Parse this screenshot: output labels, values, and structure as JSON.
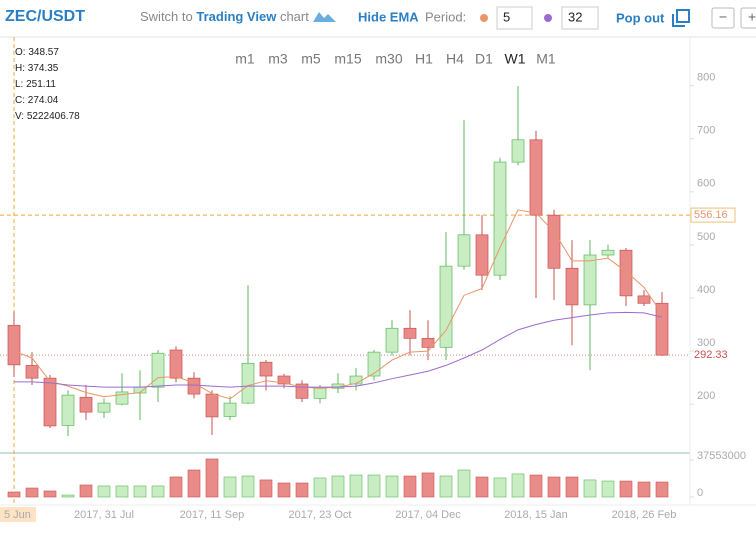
{
  "header": {
    "pair": "ZEC/USDT",
    "switch_to": "Switch to",
    "trading_view": "Trading View",
    "chart_word": "chart",
    "hide_ema": "Hide EMA",
    "period_label": "Period:",
    "period_fast": 5,
    "period_slow": 32,
    "pop_out": "Pop out",
    "zoom_out": "−",
    "zoom_in": "+"
  },
  "timeframes": [
    "m1",
    "m3",
    "m5",
    "m15",
    "m30",
    "H1",
    "H4",
    "D1",
    "W1",
    "M1"
  ],
  "active_timeframe": 8,
  "ohlc_panel": [
    {
      "label": "O:",
      "value": 348.57
    },
    {
      "label": "H:",
      "value": 374.35
    },
    {
      "label": "L:",
      "value": 251.11
    },
    {
      "label": "C:",
      "value": 274.04
    },
    {
      "label": "V:",
      "value": 5222406.78
    }
  ],
  "chart_data": {
    "type": "candlestick",
    "x": [
      "5 Jun",
      null,
      null,
      null,
      null,
      "2017, 31 Jul",
      null,
      null,
      null,
      null,
      null,
      "2017, 11 Sep",
      null,
      null,
      null,
      null,
      null,
      "2017, 23 Oct",
      null,
      null,
      null,
      null,
      null,
      "2017, 04 Dec",
      null,
      null,
      null,
      null,
      null,
      "2018, 15 Jan",
      null,
      null,
      null,
      null,
      null,
      "2018, 26 Feb",
      null
    ],
    "open": [
      348.57,
      273,
      249,
      160,
      213,
      185,
      200,
      221,
      232,
      302,
      249,
      219,
      177,
      202,
      279,
      253,
      238,
      211,
      230,
      238,
      253,
      298,
      343,
      324,
      307,
      460,
      519,
      443,
      656,
      698,
      556,
      456,
      387,
      481,
      490,
      404,
      390
    ],
    "high": [
      374.35,
      298,
      255,
      226,
      236,
      211,
      258,
      264,
      302,
      309,
      260,
      226,
      215,
      424,
      283,
      257,
      245,
      236,
      258,
      268,
      302,
      358,
      377,
      358,
      524,
      735,
      556,
      664,
      799,
      715,
      566,
      509,
      509,
      500,
      494,
      415,
      411
    ],
    "low": [
      251.11,
      236,
      155,
      140,
      170,
      174,
      198,
      170,
      204,
      241,
      211,
      142,
      170,
      200,
      226,
      230,
      204,
      202,
      221,
      226,
      245,
      292,
      292,
      283,
      283,
      453,
      415,
      434,
      650,
      400,
      396,
      311,
      264,
      475,
      385,
      385,
      291
    ],
    "close": [
      274.04,
      249,
      159,
      217,
      185,
      202,
      223,
      232,
      296,
      249,
      219,
      176,
      202,
      277,
      253,
      238,
      211,
      230,
      238,
      253,
      298,
      343,
      324,
      307,
      460,
      519,
      443,
      656,
      698,
      556,
      456,
      387,
      481,
      490,
      404,
      390,
      292.33
    ],
    "up_color": "#5cb85c",
    "up_fill": "#c9edc2",
    "down_color": "#c9524f",
    "down_fill": "#e98b89",
    "ylim": [
      108,
      886
    ],
    "yticks": [
      200,
      300,
      400,
      500,
      600,
      700,
      800
    ],
    "series": [
      {
        "name": "EMA 5",
        "color": "#e8956a",
        "values": [
          300,
          287,
          243,
          234,
          222,
          214,
          218,
          222,
          250,
          252,
          240,
          220,
          210,
          235,
          244,
          240,
          232,
          230,
          232,
          239,
          258,
          283,
          298,
          300,
          339,
          405,
          418,
          495,
          566,
          560,
          525,
          470,
          470,
          475,
          450,
          420,
          370
        ]
      },
      {
        "name": "EMA 32",
        "color": "#9b6cd0",
        "values": [
          242,
          242,
          240,
          236,
          234,
          232,
          232,
          232,
          234,
          236,
          236,
          234,
          232,
          234,
          234,
          234,
          232,
          232,
          232,
          234,
          240,
          248,
          255,
          262,
          273,
          287,
          302,
          322,
          340,
          350,
          358,
          363,
          368,
          372,
          373,
          372,
          364
        ]
      }
    ],
    "crosshair_price": 556.16,
    "last_price": 292.33,
    "volume": [
      5100000,
      9100000,
      6100000,
      2000000,
      12200000,
      11200000,
      11200000,
      11200000,
      11200000,
      20300000,
      27400000,
      38600000,
      20300000,
      21300000,
      17300000,
      14200000,
      14200000,
      19300000,
      21300000,
      22300000,
      22300000,
      21300000,
      21300000,
      24400000,
      21300000,
      27400000,
      20300000,
      19300000,
      23400000,
      22300000,
      20300000,
      20300000,
      17300000,
      16200000,
      16200000,
      15200000,
      15200000
    ],
    "vlim": [
      0,
      37553000
    ],
    "vticks": [
      0,
      37553000
    ]
  }
}
